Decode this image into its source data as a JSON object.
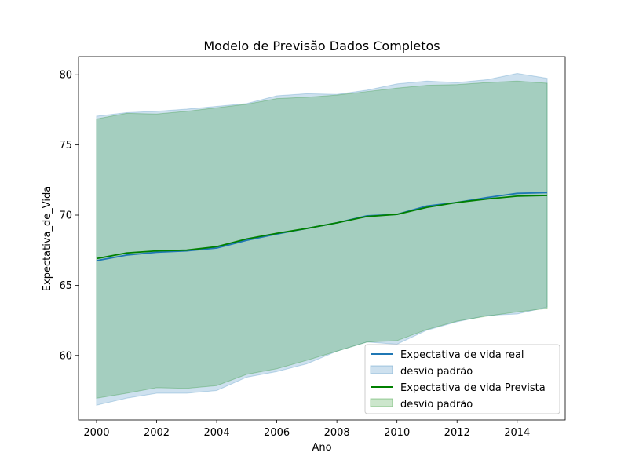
{
  "chart_data": {
    "type": "line",
    "title": "Modelo de Previsão Dados Completos",
    "xlabel": "Ano",
    "ylabel": "Expectativa_de_Vida",
    "xlim": [
      1999.4,
      2015.6
    ],
    "ylim": [
      55.4,
      81.3
    ],
    "x_ticks": [
      2000,
      2002,
      2004,
      2006,
      2008,
      2010,
      2012,
      2014
    ],
    "y_ticks": [
      60,
      65,
      70,
      75,
      80
    ],
    "grid": false,
    "legend_position": "lower right",
    "x": [
      2000,
      2001,
      2002,
      2003,
      2004,
      2005,
      2006,
      2007,
      2008,
      2009,
      2010,
      2011,
      2012,
      2013,
      2014,
      2015
    ],
    "series": [
      {
        "name": "Expectativa de vida real",
        "band_name": "desvio padrão",
        "color": "#1f77b4",
        "band_color": "#1f77b4",
        "band_opacity": 0.22,
        "values": [
          66.75,
          67.15,
          67.35,
          67.45,
          67.65,
          68.2,
          68.65,
          69.05,
          69.45,
          69.95,
          70.05,
          70.65,
          70.9,
          71.25,
          71.55,
          71.6
        ],
        "upper": [
          77.05,
          77.3,
          77.4,
          77.55,
          77.75,
          77.95,
          78.5,
          78.65,
          78.6,
          78.9,
          79.35,
          79.55,
          79.45,
          79.65,
          80.1,
          79.75
        ],
        "lower": [
          56.45,
          56.95,
          57.3,
          57.3,
          57.5,
          58.45,
          58.85,
          59.4,
          60.3,
          60.95,
          60.8,
          61.8,
          62.4,
          62.85,
          62.95,
          63.45
        ]
      },
      {
        "name": "Expectativa de vida Prevista",
        "band_name": "desvio padrão",
        "color": "#008000",
        "band_color": "#008000",
        "band_opacity": 0.2,
        "values": [
          66.9,
          67.3,
          67.45,
          67.5,
          67.75,
          68.3,
          68.7,
          69.05,
          69.45,
          69.9,
          70.05,
          70.55,
          70.9,
          71.15,
          71.35,
          71.4
        ],
        "upper": [
          76.85,
          77.25,
          77.2,
          77.4,
          77.65,
          77.9,
          78.3,
          78.4,
          78.55,
          78.8,
          79.05,
          79.25,
          79.3,
          79.45,
          79.55,
          79.4
        ],
        "lower": [
          56.95,
          57.3,
          57.7,
          57.65,
          57.85,
          58.65,
          59.05,
          59.65,
          60.3,
          60.95,
          61.05,
          61.85,
          62.45,
          62.8,
          63.1,
          63.35
        ]
      }
    ]
  }
}
